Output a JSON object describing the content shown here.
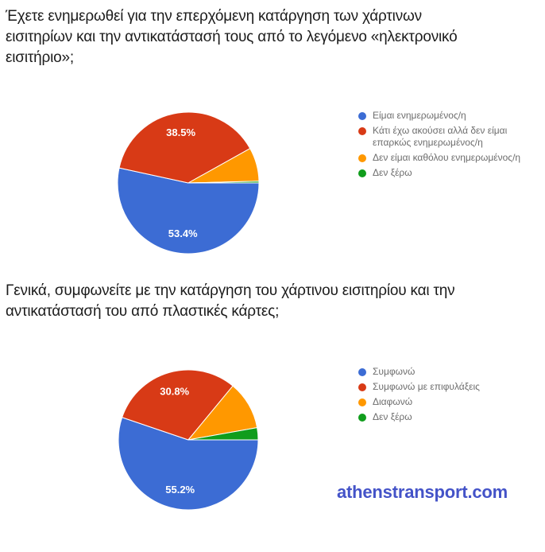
{
  "page": {
    "background": "#ffffff",
    "title_color": "#1c1c1c",
    "legend_text_color": "#6d6d6d"
  },
  "chart_data": [
    {
      "type": "pie",
      "title": "Έχετε ενημερωθεί για την επερχόμενη κατάργηση των χάρτινων\nεισιτηρίων και την αντικατάστασή τους από το λεγόμενο «ηλεκτρονικό\nεισιτήριο»;",
      "categories": [
        "Είμαι ενημερωμένος/η",
        "Κάτι έχω ακούσει αλλά δεν είμαι επαρκώς ενημερωμένος/η",
        "Δεν είμαι καθόλου ενημερωμένος/η",
        "Δεν ξέρω"
      ],
      "values": [
        53.4,
        38.5,
        7.7,
        0.4
      ],
      "slice_labels": [
        "53.4%",
        "38.5%",
        "",
        ""
      ],
      "colors": [
        "#3c6cd4",
        "#d83a16",
        "#ff9800",
        "#109d1c"
      ],
      "start_angle_deg": 90,
      "direction": "clockwise",
      "legend_position": "right",
      "slice_label_color": "#ffffff"
    },
    {
      "type": "pie",
      "title": "Γενικά, συμφωνείτε με την κατάργηση του χάρτινου εισιτηρίου και την\nαντικατάστασή του από πλαστικές κάρτες;",
      "categories": [
        "Συμφωνώ",
        "Συμφωνώ με επιφυλάξεις",
        "Διαφωνώ",
        "Δεν ξέρω"
      ],
      "values": [
        55.2,
        30.8,
        11.2,
        2.8
      ],
      "slice_labels": [
        "55.2%",
        "30.8%",
        "",
        ""
      ],
      "colors": [
        "#3c6cd4",
        "#d83a16",
        "#ff9800",
        "#109d1c"
      ],
      "start_angle_deg": 90,
      "direction": "clockwise",
      "legend_position": "right",
      "slice_label_color": "#ffffff"
    }
  ],
  "footer": {
    "watermark": "athenstransport.com",
    "watermark_color": "#4453c8"
  }
}
